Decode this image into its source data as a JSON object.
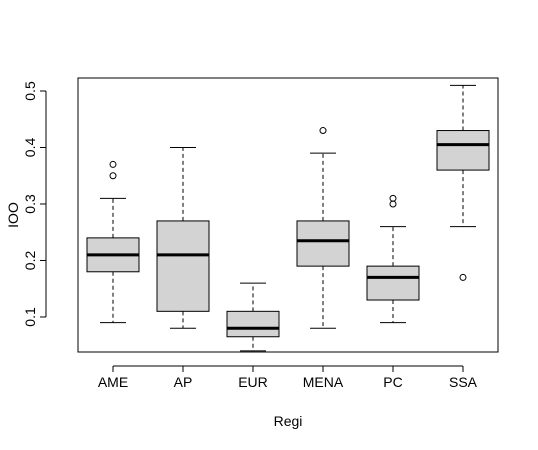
{
  "chart_data": {
    "type": "boxplot",
    "xlabel": "Regi",
    "ylabel": "IOO",
    "categories": [
      "AME",
      "AP",
      "EUR",
      "MENA",
      "PC",
      "SSA"
    ],
    "yticks": [
      "0.1",
      "0.2",
      "0.3",
      "0.4",
      "0.5"
    ],
    "ylim": [
      0.038,
      0.523
    ],
    "boxes": [
      {
        "category": "AME",
        "whisker_low": 0.09,
        "q1": 0.18,
        "median": 0.21,
        "q3": 0.24,
        "whisker_high": 0.31,
        "outliers": [
          0.35,
          0.37
        ]
      },
      {
        "category": "AP",
        "whisker_low": 0.08,
        "q1": 0.11,
        "median": 0.21,
        "q3": 0.27,
        "whisker_high": 0.4,
        "outliers": []
      },
      {
        "category": "EUR",
        "whisker_low": 0.04,
        "q1": 0.065,
        "median": 0.08,
        "q3": 0.11,
        "whisker_high": 0.16,
        "outliers": []
      },
      {
        "category": "MENA",
        "whisker_low": 0.08,
        "q1": 0.19,
        "median": 0.235,
        "q3": 0.27,
        "whisker_high": 0.39,
        "outliers": [
          0.43
        ]
      },
      {
        "category": "PC",
        "whisker_low": 0.09,
        "q1": 0.13,
        "median": 0.17,
        "q3": 0.19,
        "whisker_high": 0.26,
        "outliers": [
          0.3,
          0.31
        ]
      },
      {
        "category": "SSA",
        "whisker_low": 0.26,
        "q1": 0.36,
        "median": 0.405,
        "q3": 0.43,
        "whisker_high": 0.51,
        "outliers": [
          0.17
        ]
      }
    ],
    "box_fill": "#d3d3d3",
    "line_color": "#000000",
    "grid": false,
    "legend": "none"
  }
}
